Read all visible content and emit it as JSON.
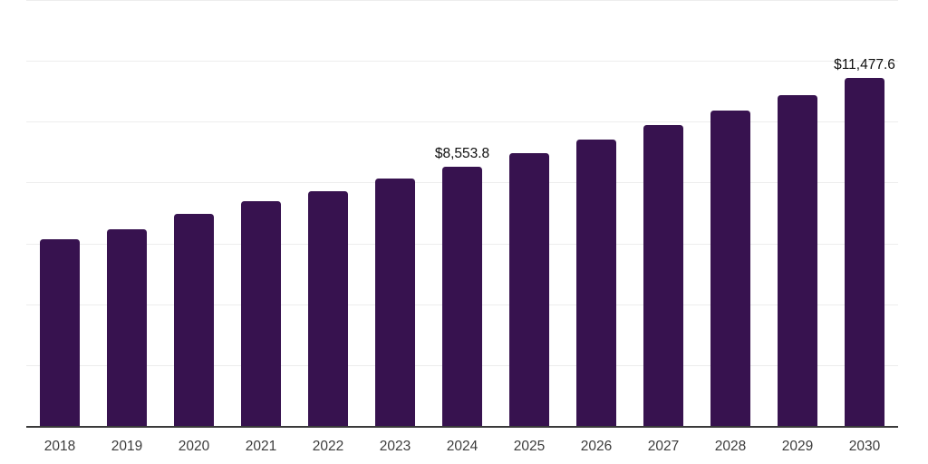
{
  "chart_data": {
    "type": "bar",
    "title": "",
    "xlabel": "",
    "ylabel": "",
    "categories": [
      "2018",
      "2019",
      "2020",
      "2021",
      "2022",
      "2023",
      "2024",
      "2025",
      "2026",
      "2027",
      "2028",
      "2029",
      "2030"
    ],
    "values": [
      6180,
      6490,
      6990,
      7420,
      7760,
      8170,
      8553.8,
      9000,
      9440,
      9920,
      10400,
      10900,
      11477.6
    ],
    "point_labels": [
      {
        "category": "2024",
        "text": "$8,553.8"
      },
      {
        "category": "2030",
        "text": "$11,477.6"
      }
    ],
    "ylim": [
      0,
      14000
    ],
    "gridline_interval": 2000,
    "grid": "horizontal-only",
    "legend": "none",
    "y_axis_tick_labels": "none",
    "colors": {
      "bar": "#37124F",
      "gridline": "#EDEDED",
      "axis_line": "#3A3A3A",
      "tick_label": "#3C3C3C",
      "data_label": "#0F0F0F",
      "background": "#FFFFFF"
    }
  }
}
